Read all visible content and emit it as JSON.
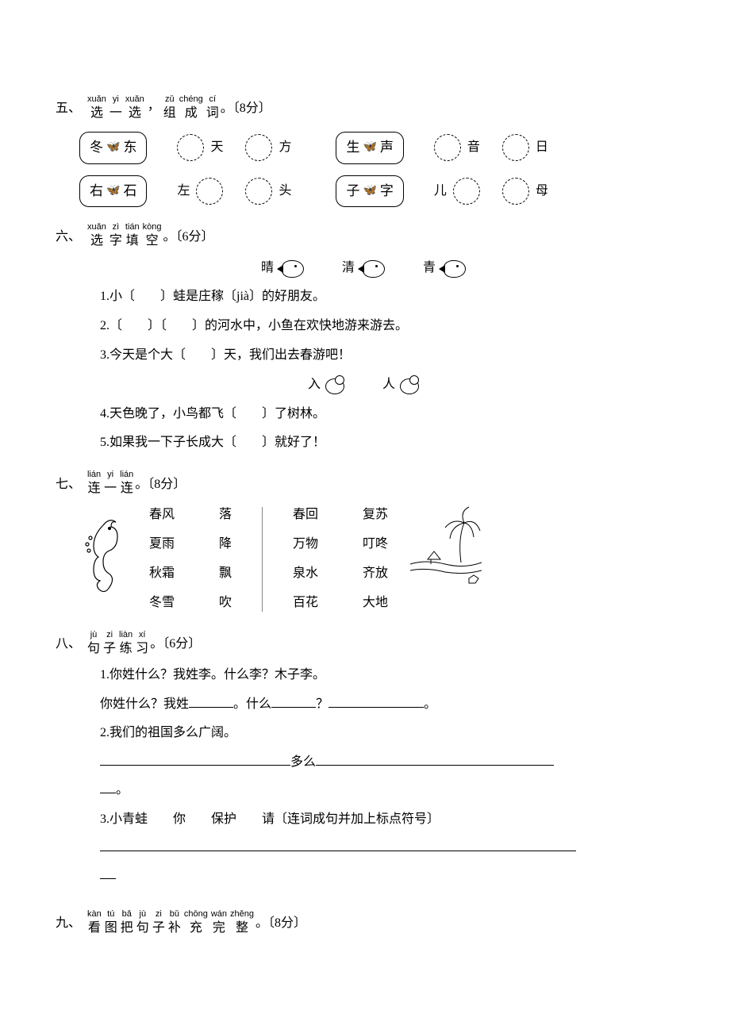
{
  "section5": {
    "num": "五、",
    "heading_chars": [
      {
        "py": "xuǎn",
        "zh": "选"
      },
      {
        "py": "yi",
        "zh": "一"
      },
      {
        "py": "xuǎn",
        "zh": "选"
      },
      {
        "py": "",
        "zh": "，"
      },
      {
        "py": "zǔ",
        "zh": "组"
      },
      {
        "py": "chéng",
        "zh": "成"
      },
      {
        "py": "cí",
        "zh": "词"
      }
    ],
    "tail": "。〔8分〕",
    "row1": {
      "pair1a": "冬",
      "pair1b": "东",
      "out1": "天",
      "out2": "方",
      "pair2a": "生",
      "pair2b": "声",
      "out3": "音",
      "out4": "日"
    },
    "row2": {
      "pair1a": "右",
      "pair1b": "石",
      "pref1": "左",
      "out1": "",
      "out2": "头",
      "pair2a": "子",
      "pair2b": "字",
      "out3": "儿",
      "out4": "母"
    }
  },
  "section6": {
    "num": "六、",
    "heading_chars": [
      {
        "py": "xuǎn",
        "zh": "选"
      },
      {
        "py": "zì",
        "zh": "字"
      },
      {
        "py": "tián",
        "zh": "填"
      },
      {
        "py": "kòng",
        "zh": "空"
      }
    ],
    "tail": "。〔6分〕",
    "words_a": [
      "晴",
      "清",
      "青"
    ],
    "q1": "1.小〔　　〕蛙是庄稼〔jià〕的好朋友。",
    "q2": "2.〔　　〕〔　　〕的河水中，小鱼在欢快地游来游去。",
    "q3": "3.今天是个大〔　　〕天，我们出去春游吧！",
    "words_b": [
      "入",
      "人"
    ],
    "q4": "4.天色晚了，小鸟都飞〔　　〕了树林。",
    "q5": "5.如果我一下子长成大〔　　〕就好了！"
  },
  "section7": {
    "num": "七、",
    "heading_chars": [
      {
        "py": "lián",
        "zh": "连"
      },
      {
        "py": "yi",
        "zh": "一"
      },
      {
        "py": "lián",
        "zh": "连"
      }
    ],
    "tail": "。〔8分〕",
    "left1": [
      "春风",
      "夏雨",
      "秋霜",
      "冬雪"
    ],
    "left2": [
      "落",
      "降",
      "飘",
      "吹"
    ],
    "right1": [
      "春回",
      "万物",
      "泉水",
      "百花"
    ],
    "right2": [
      "复苏",
      "叮咚",
      "齐放",
      "大地"
    ]
  },
  "section8": {
    "num": "八、",
    "heading_chars": [
      {
        "py": "jù",
        "zh": "句"
      },
      {
        "py": "zi",
        "zh": "子"
      },
      {
        "py": "liàn",
        "zh": "练"
      },
      {
        "py": "xí",
        "zh": "习"
      }
    ],
    "tail": "。〔6分〕",
    "q1a": "1.你姓什么？我姓李。什么李？木子李。",
    "q1b_pre": "你姓什么？我姓",
    "q1b_mid": "。什么",
    "q1b_q": "？",
    "q1b_end": "。",
    "q2a": "2.我们的祖国多么广阔。",
    "q2_mid": "多么",
    "q2_tail": "。",
    "q3": "3.小青蛙　　你　　保护　　请〔连词成句并加上标点符号〕"
  },
  "section9": {
    "num": "九、",
    "heading_chars": [
      {
        "py": "kàn",
        "zh": "看"
      },
      {
        "py": "tú",
        "zh": "图"
      },
      {
        "py": "bǎ",
        "zh": "把"
      },
      {
        "py": "jù",
        "zh": "句"
      },
      {
        "py": "zi",
        "zh": "子"
      },
      {
        "py": "bǔ",
        "zh": "补"
      },
      {
        "py": "chōng",
        "zh": "充"
      },
      {
        "py": "wán",
        "zh": "完"
      },
      {
        "py": "zhěng",
        "zh": "整"
      }
    ],
    "tail": "。〔8分〕"
  }
}
